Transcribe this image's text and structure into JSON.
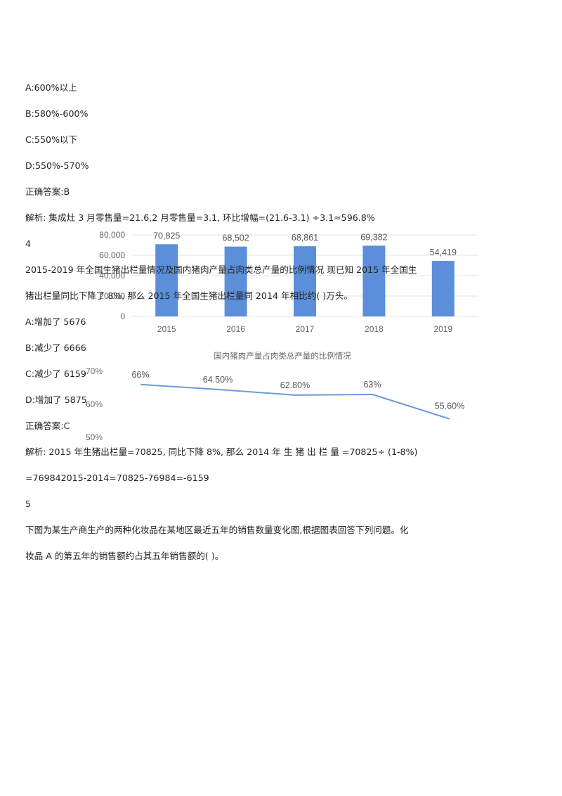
{
  "q3": {
    "options": [
      "A:600%以上",
      "B:580%-600%",
      "C:550%以下",
      "D:550%-570%"
    ],
    "answer": "正确答案:B",
    "analysis": "解析: 集成灶 3 月零售量=21.6,2 月零售量=3.1, 环比增幅=(21.6-3.1) ÷3.1≈596.8%"
  },
  "q4": {
    "number": "4",
    "stem_line1": "2015-2019 年全国生猪出栏量情况及国内猪肉产量占肉类总产量的比例情况 现已知 2015 年全国生",
    "stem_line2": "猪出栏量同比下降了 8%, 那么 2015 年全国生猪出栏量同 2014 年相比约( )万头。",
    "options": [
      "A:增加了 5676",
      "B:减少了 6666",
      "C:减少了 6159",
      "D:增加了 5875"
    ],
    "answer": "正确答案:C",
    "analysis_line1": "解析: 2015 年生猪出栏量=70825, 同比下降 8%, 那么 2014 年 生 猪 出 栏 量 =70825÷ (1-8%)",
    "analysis_line2": "=769842015-2014=70825-76984=-6159"
  },
  "q5": {
    "number": "5",
    "stem_line1": "下图为某生产商生产的两种化妆品在某地区最近五年的销售数量变化图,根据图表回答下列问题。化",
    "stem_line2": "妆品 A 的第五年的销售额约占其五年销售额的( )。"
  },
  "colors": {
    "bar": "#5b8fd9",
    "line": "#6a9bd6",
    "grid": "#e3e3e3"
  },
  "chart_data": [
    {
      "type": "bar",
      "categories": [
        "2015",
        "2016",
        "2017",
        "2018",
        "2019"
      ],
      "values": [
        70825,
        68502,
        68861,
        69382,
        54419
      ],
      "data_labels": [
        "70,825",
        "68,502",
        "68,861",
        "69,382",
        "54,419"
      ],
      "yticks": [
        "80,000",
        "60,000",
        "40,000",
        "20,000",
        "0"
      ],
      "ylim": [
        0,
        80000
      ],
      "grid": true
    },
    {
      "type": "line",
      "title": "国内猪肉产量占肉类总产量的比例情况",
      "categories": [
        "2015",
        "2016",
        "2017",
        "2018",
        "2019"
      ],
      "values": [
        66,
        64.5,
        62.8,
        63,
        55.6
      ],
      "data_labels": [
        "66%",
        "64.50%",
        "62.80%",
        "63%",
        "55.60%"
      ],
      "yticks": [
        "70%",
        "60%",
        "50%"
      ],
      "ylim": [
        50,
        70
      ],
      "grid": false
    }
  ]
}
